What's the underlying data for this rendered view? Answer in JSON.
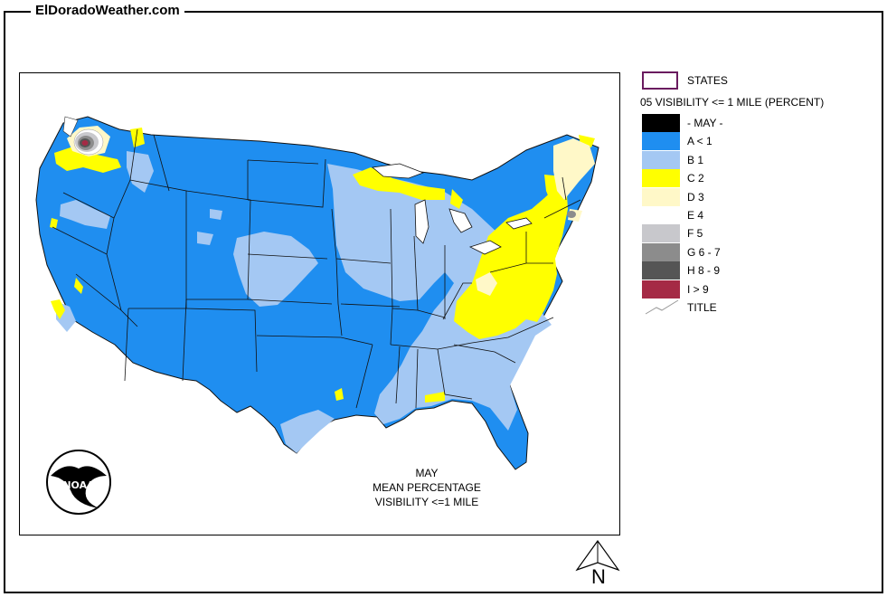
{
  "site": {
    "title": "ElDoradoWeather.com"
  },
  "map": {
    "title_lines": [
      "MAY",
      "MEAN PERCENTAGE",
      "VISIBILITY <=1 MILE"
    ],
    "logo_text": "NOAA"
  },
  "legend": {
    "states_label": "STATES",
    "heading": "05 VISIBILITY <= 1 MILE (PERCENT)",
    "items": [
      {
        "label": "- MAY -",
        "color": "#000000"
      },
      {
        "label": "A < 1",
        "color": "#1f8ef0"
      },
      {
        "label": "B 1",
        "color": "#a4c8f3"
      },
      {
        "label": "C 2",
        "color": "#ffff00"
      },
      {
        "label": "D 3",
        "color": "#fff8c8"
      },
      {
        "label": "E 4",
        "color": "#ffffff"
      },
      {
        "label": "F 5",
        "color": "#c8c8cc"
      },
      {
        "label": "G 6 - 7",
        "color": "#8c8c8c"
      },
      {
        "label": "H 8 - 9",
        "color": "#555555"
      },
      {
        "label": "I > 9",
        "color": "#a52a45"
      }
    ],
    "title_label": "TITLE"
  },
  "compass": {
    "letter": "N"
  }
}
